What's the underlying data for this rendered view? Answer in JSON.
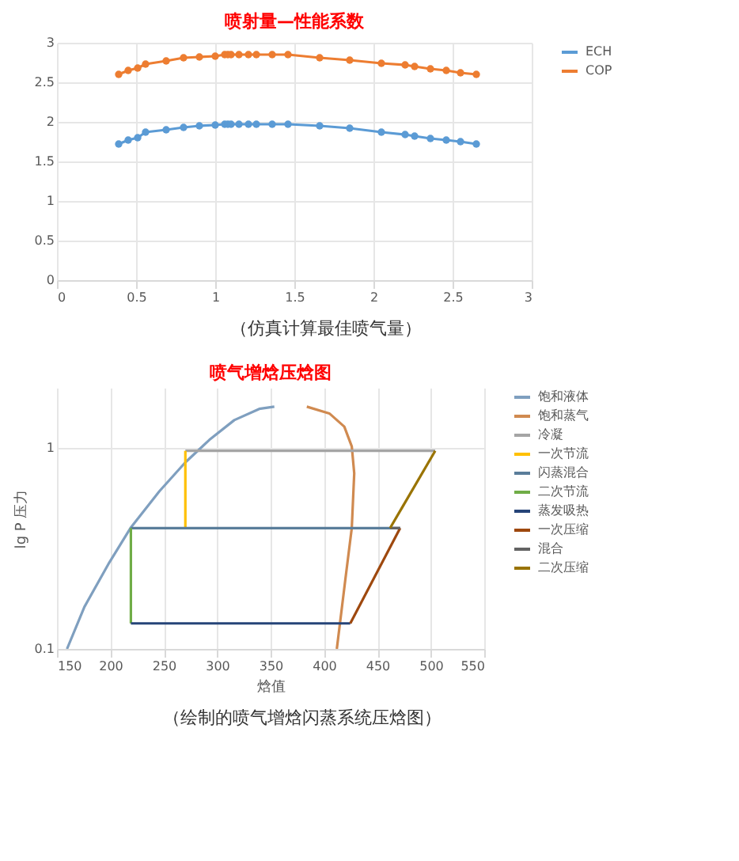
{
  "chart_data": [
    {
      "type": "line",
      "title": "喷射量—性能系数",
      "x": [
        0.39,
        0.45,
        0.51,
        0.56,
        0.69,
        0.8,
        0.9,
        1.0,
        1.06,
        1.08,
        1.1,
        1.15,
        1.21,
        1.26,
        1.36,
        1.46,
        1.66,
        1.85,
        2.05,
        2.2,
        2.26,
        2.36,
        2.46,
        2.55,
        2.65
      ],
      "series": [
        {
          "name": "ECH",
          "color": "#5b9bd5",
          "values": [
            1.72,
            1.77,
            1.8,
            1.87,
            1.9,
            1.93,
            1.95,
            1.96,
            1.97,
            1.97,
            1.97,
            1.97,
            1.97,
            1.97,
            1.97,
            1.97,
            1.95,
            1.92,
            1.87,
            1.84,
            1.82,
            1.79,
            1.77,
            1.75,
            1.72
          ]
        },
        {
          "name": "COP",
          "color": "#ed7d31",
          "values": [
            2.6,
            2.65,
            2.68,
            2.73,
            2.77,
            2.81,
            2.82,
            2.83,
            2.85,
            2.85,
            2.85,
            2.85,
            2.85,
            2.85,
            2.85,
            2.85,
            2.81,
            2.78,
            2.74,
            2.72,
            2.7,
            2.67,
            2.65,
            2.62,
            2.6
          ]
        }
      ],
      "xlim": [
        0,
        3
      ],
      "xticks": [
        0,
        0.5,
        1,
        1.5,
        2,
        2.5,
        3
      ],
      "ylim": [
        0,
        3
      ],
      "yticks": [
        0,
        0.5,
        1,
        1.5,
        2,
        2.5,
        3
      ],
      "grid": true,
      "legend": "right",
      "marker": "circle",
      "annotations": [
        "（仿真计算最佳喷气量）"
      ]
    },
    {
      "type": "line",
      "title": "喷气增焓压焓图",
      "xlabel": "焓值",
      "ylabel": "lg P 压力",
      "log": "y",
      "series": [
        {
          "name": "饱和液体",
          "color": "#7f9fbf",
          "x": [
            159.4,
            175.7,
            199.1,
            218.8,
            245.9,
            270.2,
            292.7,
            316.0,
            339.4,
            353.5
          ],
          "values": [
            0.1,
            0.162,
            0.27,
            0.4,
            0.61,
            0.85,
            1.1,
            1.38,
            1.57,
            1.61
          ]
        },
        {
          "name": "饱和蒸气",
          "color": "#d08a50",
          "x": [
            383.9,
            405.0,
            419.0,
            426.0,
            428.3,
            426.0,
            419.9,
            412.0
          ],
          "values": [
            1.61,
            1.49,
            1.28,
            1.02,
            0.75,
            0.4,
            0.22,
            0.1
          ]
        },
        {
          "name": "冷凝",
          "color": "#a5a5a5",
          "x": [
            504.1,
            270.2
          ],
          "values": [
            0.97,
            0.97
          ]
        },
        {
          "name": "一次节流",
          "color": "#ffc000",
          "x": [
            270.2,
            270.2
          ],
          "values": [
            0.97,
            0.4
          ]
        },
        {
          "name": "闪蒸混合",
          "color": "#5a7d9a",
          "x": [
            219.2,
            471.3
          ],
          "values": [
            0.4,
            0.4
          ]
        },
        {
          "name": "二次节流",
          "color": "#70ad47",
          "x": [
            219.2,
            219.2
          ],
          "values": [
            0.4,
            0.134
          ]
        },
        {
          "name": "蒸发吸热",
          "color": "#264478",
          "x": [
            219.2,
            424.6
          ],
          "values": [
            0.134,
            0.134
          ]
        },
        {
          "name": "一次压缩",
          "color": "#9e480e",
          "x": [
            424.6,
            471.3
          ],
          "values": [
            0.134,
            0.4
          ]
        },
        {
          "name": "混合",
          "color": "#636363",
          "x": [
            471.3,
            461.9
          ],
          "values": [
            0.4,
            0.4
          ]
        },
        {
          "name": "二次压缩",
          "color": "#997300",
          "x": [
            461.9,
            504.1
          ],
          "values": [
            0.4,
            0.97
          ]
        }
      ],
      "xlim": [
        150,
        550
      ],
      "xticks": [
        150,
        200,
        250,
        300,
        350,
        400,
        450,
        500,
        550
      ],
      "ylim": [
        0.1,
        2
      ],
      "yticks": [
        0.1,
        1
      ],
      "grid": true,
      "legend": "right",
      "annotations": [
        "（绘制的喷气增焓闪蒸系统压焓图）"
      ]
    }
  ]
}
